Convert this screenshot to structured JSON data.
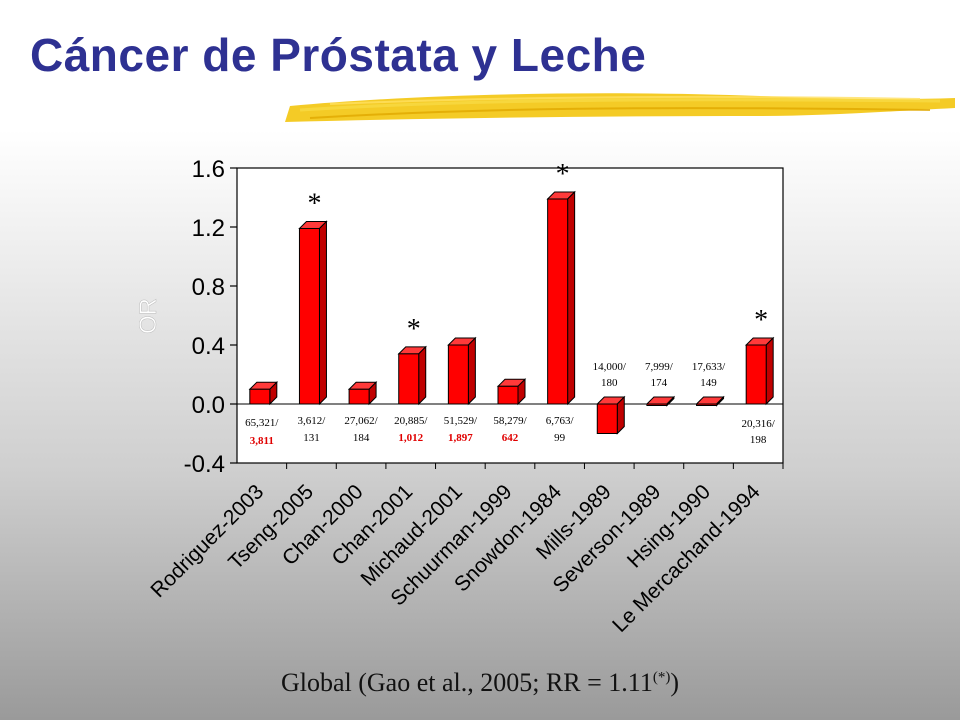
{
  "slide": {
    "title": "Cáncer de Próstata y Leche",
    "footer_main": "Global (Gao et al., 2005; RR = 1.11",
    "footer_sup": "(*)",
    "footer_close": ")"
  },
  "colors": {
    "title": "#2e3192",
    "bar_front": "#ff0000",
    "bar_side": "#c00000",
    "bar_top": "#ff3a3a",
    "highlight_text": "#e00000",
    "brush_stroke": "#f2c200"
  },
  "chart_data": {
    "type": "bar",
    "ylabel": "OR",
    "ylim": [
      -0.4,
      1.6
    ],
    "yticks": [
      "1.6",
      "1.2",
      "0.8",
      "0.4",
      "0.0",
      "-0.4"
    ],
    "ytick_values": [
      1.6,
      1.2,
      0.8,
      0.4,
      0.0,
      -0.4
    ],
    "categories": [
      "Rodriguez-2003",
      "Tseng-2005",
      "Chan-2000",
      "Chan-2001",
      "Michaud-2001",
      "Schuurman-1999",
      "Snowdon-1984",
      "Mills-1989",
      "Severson-1989",
      "Hsing-1990",
      "Le Mercachand-1994"
    ],
    "values": [
      0.1,
      1.19,
      0.1,
      0.34,
      0.4,
      0.12,
      1.39,
      -0.2,
      0.0,
      0.0,
      0.4
    ],
    "significant": [
      false,
      true,
      false,
      true,
      false,
      false,
      true,
      false,
      false,
      false,
      true
    ],
    "significance_marker": "*",
    "annotations": [
      {
        "top": "65,321/",
        "bottom": "3,811",
        "bottom_highlight": true
      },
      {
        "top": "3,612/",
        "bottom": "131",
        "bottom_highlight": false
      },
      {
        "top": "27,062/",
        "bottom": "184",
        "bottom_highlight": false
      },
      {
        "top": "20,885/",
        "bottom": "1,012",
        "bottom_highlight": true
      },
      {
        "top": "51,529/",
        "bottom": "1,897",
        "bottom_highlight": true
      },
      {
        "top": "58,279/",
        "bottom": "642",
        "bottom_highlight": true
      },
      {
        "top": "6,763/",
        "bottom": "99",
        "bottom_highlight": false
      },
      {
        "top": "14,000/",
        "bottom": "180",
        "bottom_highlight": false
      },
      {
        "top": "7,999/",
        "bottom": "174",
        "bottom_highlight": false
      },
      {
        "top": "17,633/",
        "bottom": "149",
        "bottom_highlight": false
      },
      {
        "top": "20,316/",
        "bottom": "198",
        "bottom_highlight": false
      }
    ],
    "grid": false,
    "legend": "none"
  }
}
